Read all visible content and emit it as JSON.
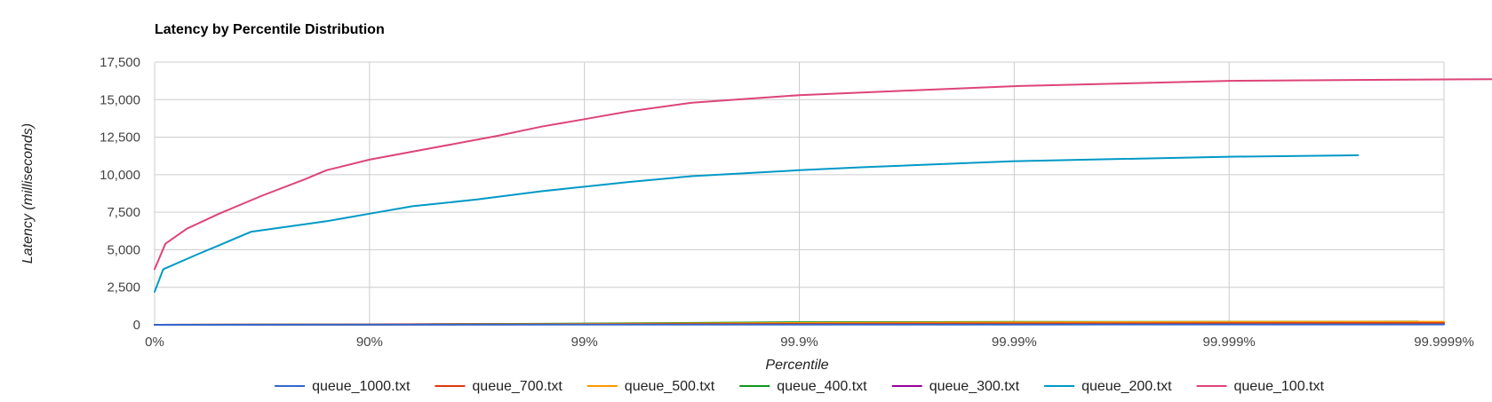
{
  "chart_data": {
    "type": "line",
    "title": "Latency by Percentile Distribution",
    "xlabel": "Percentile",
    "ylabel": "Latency (milliseconds)",
    "x_scale": "log-inverse-percentile",
    "x_ticks": [
      "0%",
      "90%",
      "99%",
      "99.9%",
      "99.99%",
      "99.999%",
      "99.9999%"
    ],
    "x_range_decades": [
      0,
      6
    ],
    "y_ticks": [
      "0",
      "2,500",
      "5,000",
      "7,500",
      "10,000",
      "12,500",
      "15,000",
      "17,500"
    ],
    "ylim": [
      0,
      17500
    ],
    "grid": true,
    "legend_position": "bottom",
    "series": [
      {
        "name": "queue_1000.txt",
        "color": "#3366cc",
        "points": [
          [
            0,
            0
          ],
          [
            1,
            5
          ],
          [
            2,
            10
          ],
          [
            3,
            15
          ],
          [
            4,
            20
          ],
          [
            5,
            25
          ],
          [
            6,
            25
          ]
        ]
      },
      {
        "name": "queue_700.txt",
        "color": "#dc3912",
        "points": [
          [
            0,
            0
          ],
          [
            1,
            10
          ],
          [
            2,
            30
          ],
          [
            3,
            60
          ],
          [
            4,
            80
          ],
          [
            5,
            100
          ],
          [
            5.88,
            110
          ],
          [
            6,
            110
          ]
        ]
      },
      {
        "name": "queue_500.txt",
        "color": "#ff9900",
        "points": [
          [
            0,
            0
          ],
          [
            1,
            20
          ],
          [
            2,
            60
          ],
          [
            3,
            120
          ],
          [
            4,
            160
          ],
          [
            5,
            190
          ],
          [
            5.88,
            200
          ],
          [
            6,
            200
          ]
        ]
      },
      {
        "name": "queue_400.txt",
        "color": "#109618",
        "points": [
          [
            0,
            0
          ],
          [
            1,
            20
          ],
          [
            2,
            80
          ],
          [
            3,
            170
          ],
          [
            4,
            190
          ],
          [
            5,
            200
          ],
          [
            5.88,
            210
          ]
        ]
      },
      {
        "name": "queue_300.txt",
        "color": "#990099",
        "points": [
          [
            0,
            0
          ],
          [
            1,
            30
          ],
          [
            2,
            60
          ],
          [
            3,
            80
          ],
          [
            4,
            80
          ],
          [
            5,
            80
          ],
          [
            6,
            80
          ]
        ]
      },
      {
        "name": "queue_200.txt",
        "color": "#0099c6",
        "points": [
          [
            0,
            2200
          ],
          [
            0.04,
            3700
          ],
          [
            0.2,
            4700
          ],
          [
            0.3,
            5300
          ],
          [
            0.45,
            6200
          ],
          [
            0.8,
            6900
          ],
          [
            1,
            7400
          ],
          [
            1.2,
            7900
          ],
          [
            1.5,
            8350
          ],
          [
            1.8,
            8900
          ],
          [
            2,
            9200
          ],
          [
            2.2,
            9500
          ],
          [
            2.5,
            9900
          ],
          [
            3,
            10300
          ],
          [
            3.3,
            10500
          ],
          [
            4,
            10900
          ],
          [
            5,
            11200
          ],
          [
            5.6,
            11300
          ]
        ]
      },
      {
        "name": "queue_100.txt",
        "color": "#dd4477",
        "points": [
          [
            0,
            3700
          ],
          [
            0.05,
            5400
          ],
          [
            0.15,
            6400
          ],
          [
            0.3,
            7400
          ],
          [
            0.5,
            8600
          ],
          [
            0.7,
            9700
          ],
          [
            0.8,
            10300
          ],
          [
            1,
            11000
          ],
          [
            1.3,
            11800
          ],
          [
            1.6,
            12600
          ],
          [
            1.8,
            13200
          ],
          [
            2,
            13700
          ],
          [
            2.2,
            14200
          ],
          [
            2.5,
            14800
          ],
          [
            3,
            15300
          ],
          [
            3.5,
            15600
          ],
          [
            4,
            15900
          ],
          [
            5,
            16250
          ],
          [
            6,
            16350
          ],
          [
            6.7,
            16400
          ]
        ]
      }
    ]
  }
}
